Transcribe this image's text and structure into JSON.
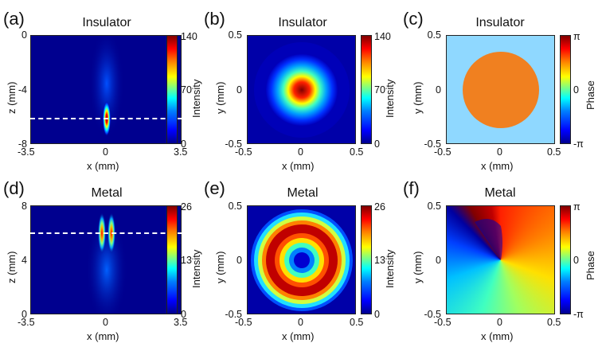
{
  "panels": {
    "a": {
      "label": "(a)",
      "title": "Insulator",
      "xlabel": "x (mm)",
      "ylabel": "z (mm)",
      "xticks": [
        "-3.5",
        "0",
        "3.5"
      ],
      "yticks": [
        "0",
        "-4",
        "-8"
      ],
      "cbar_label": "Intensity",
      "cbar_ticks": [
        "140",
        "70",
        "0"
      ]
    },
    "b": {
      "label": "(b)",
      "title": "Insulator",
      "xlabel": "x (mm)",
      "ylabel": "y (mm)",
      "xticks": [
        "-0.5",
        "0",
        "0.5"
      ],
      "yticks": [
        "0.5",
        "0",
        "-0.5"
      ],
      "cbar_label": "Intensity",
      "cbar_ticks": [
        "140",
        "70",
        "0"
      ]
    },
    "c": {
      "label": "(c)",
      "title": "Insulator",
      "xlabel": "x (mm)",
      "ylabel": "y (mm)",
      "xticks": [
        "-0.5",
        "0",
        "0.5"
      ],
      "yticks": [
        "0.5",
        "0",
        "-0.5"
      ],
      "cbar_label": "Phase",
      "cbar_ticks": [
        "π",
        "0",
        "-π"
      ]
    },
    "d": {
      "label": "(d)",
      "title": "Metal",
      "xlabel": "x (mm)",
      "ylabel": "z (mm)",
      "xticks": [
        "-3.5",
        "0",
        "3.5"
      ],
      "yticks": [
        "8",
        "4",
        "0"
      ],
      "cbar_label": "Intensity",
      "cbar_ticks": [
        "26",
        "13",
        "0"
      ]
    },
    "e": {
      "label": "(e)",
      "title": "Metal",
      "xlabel": "x (mm)",
      "ylabel": "y (mm)",
      "xticks": [
        "-0.5",
        "0",
        "0.5"
      ],
      "yticks": [
        "0.5",
        "0",
        "-0.5"
      ],
      "cbar_label": "Intensity",
      "cbar_ticks": [
        "26",
        "13",
        "0"
      ]
    },
    "f": {
      "label": "(f)",
      "title": "Metal",
      "xlabel": "x (mm)",
      "ylabel": "y (mm)",
      "xticks": [
        "-0.5",
        "0",
        "0.5"
      ],
      "yticks": [
        "0.5",
        "0",
        "-0.5"
      ],
      "cbar_label": "Phase",
      "cbar_ticks": [
        "π",
        "0",
        "-π"
      ]
    }
  },
  "colors": {
    "jet_dark_blue": "#00008f",
    "jet_blue": "#0000ff",
    "jet_cyan": "#00ffff",
    "jet_yellow": "#ffff00",
    "jet_red": "#ff0000",
    "jet_dark_red": "#800000",
    "phase_flat_bg": "#8fd8ff",
    "phase_flat_disk": "#ff8020"
  }
}
